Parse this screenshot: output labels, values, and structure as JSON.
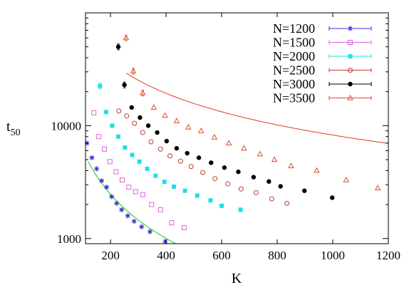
{
  "chart_data": {
    "type": "scatter",
    "xlabel": "K",
    "ylabel": "t",
    "ylabel_sub": "50",
    "xlim": [
      110,
      1200
    ],
    "ylim": [
      900,
      100000
    ],
    "y_scale": "log",
    "grid": false,
    "legend_position": "top-right",
    "x_ticks": [
      200,
      400,
      600,
      800,
      1000,
      1200
    ],
    "x_tick_labels": [
      "200",
      "400",
      "600",
      "800",
      "1000",
      "1200"
    ],
    "y_ticks": [
      1000,
      10000
    ],
    "y_tick_labels": [
      "1000",
      "10000"
    ],
    "series": [
      {
        "name": "N=1200",
        "color": "#3a2fd6",
        "marker": "star",
        "x": [
          115,
          133,
          150,
          168,
          186,
          204,
          222,
          240,
          262,
          285,
          312,
          342,
          397
        ],
        "y": [
          7000,
          5200,
          4150,
          3250,
          2850,
          2350,
          2050,
          1800,
          1590,
          1420,
          1270,
          1150,
          940
        ]
      },
      {
        "name": "N=1500",
        "color": "#e060e0",
        "marker": "open-square",
        "x": [
          140,
          158,
          178,
          198,
          220,
          242,
          266,
          290,
          316,
          348,
          380,
          420,
          465
        ],
        "y": [
          13000,
          8000,
          6200,
          4800,
          3900,
          3300,
          2850,
          2600,
          2450,
          2000,
          1800,
          1380,
          1250
        ]
      },
      {
        "name": "N=2000",
        "color": "#22dfe4",
        "marker": "filled-square",
        "x": [
          162,
          184,
          206,
          228,
          252,
          278,
          304,
          332,
          362,
          394,
          428,
          468,
          512,
          560,
          600,
          668
        ],
        "y": [
          22500,
          13200,
          10000,
          8000,
          6400,
          5500,
          4800,
          4150,
          3600,
          3180,
          2880,
          2650,
          2400,
          2180,
          1950,
          1800
        ]
      },
      {
        "name": "N=2500",
        "color": "#b8412b",
        "marker": "open-circle",
        "x": [
          230,
          258,
          286,
          316,
          346,
          380,
          414,
          452,
          490,
          532,
          576,
          622,
          670,
          724,
          780,
          835
        ],
        "y": [
          13500,
          12200,
          10500,
          8700,
          7200,
          6200,
          5400,
          4850,
          4350,
          3850,
          3400,
          3050,
          2750,
          2550,
          2250,
          2050
        ]
      },
      {
        "name": "N=3000",
        "color": "#000000",
        "marker": "filled-circle",
        "x": [
          228,
          250,
          276,
          306,
          336,
          368,
          402,
          438,
          476,
          518,
          562,
          610,
          660,
          715,
          770,
          812,
          898,
          998
        ],
        "y": [
          50000,
          23000,
          14500,
          11800,
          10000,
          8700,
          7300,
          6300,
          5700,
          5200,
          4700,
          4250,
          3900,
          3500,
          3200,
          2900,
          2650,
          2300
        ]
      },
      {
        "name": "N=3500",
        "color": "#e34a2a",
        "marker": "open-triangle",
        "x": [
          256,
          282,
          316,
          356,
          396,
          438,
          480,
          526,
          574,
          626,
          680,
          738,
          790,
          850,
          942,
          1048,
          1162
        ],
        "y": [
          60000,
          30500,
          19500,
          14500,
          12300,
          11000,
          9700,
          9000,
          7900,
          7000,
          6300,
          5600,
          5000,
          4400,
          4000,
          3300,
          2800
        ]
      }
    ],
    "fit_lines": [
      {
        "color": "#e33a2a",
        "a": 5090000,
        "b": 0.93,
        "x_range": [
          257,
          1200
        ]
      },
      {
        "color": "#22c322",
        "a": 2420000,
        "b": 1.3,
        "x_range": [
          120,
          510
        ]
      }
    ]
  }
}
